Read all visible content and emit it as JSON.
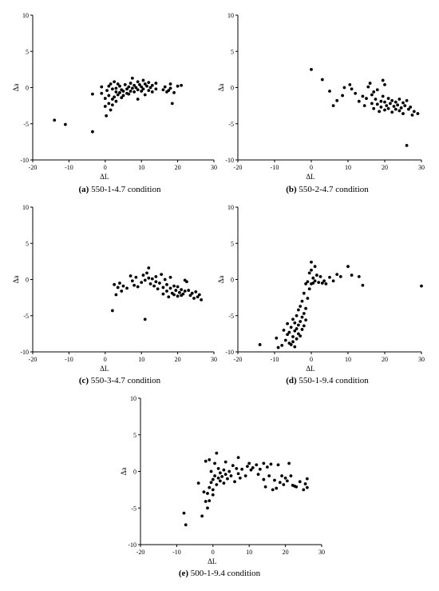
{
  "chart_data": [
    {
      "id": "a",
      "type": "scatter",
      "caption_letter": "(a)",
      "caption_text": " 550-1-4.7 condition",
      "xlabel": "ΔL",
      "ylabel": "Δa",
      "xlim": [
        -20,
        30
      ],
      "ylim": [
        -10,
        10
      ],
      "xticks": [
        "-20",
        "-10",
        "0",
        "10",
        "20",
        "30"
      ],
      "yticks": [
        "10",
        "5",
        "0",
        "-5",
        "-10"
      ],
      "points": [
        [
          -14,
          -4.5
        ],
        [
          -11,
          -5.1
        ],
        [
          -3.5,
          -6.1
        ],
        [
          -3.5,
          -0.9
        ],
        [
          -1,
          0.1
        ],
        [
          -1,
          -0.8
        ],
        [
          0,
          -1.5
        ],
        [
          0,
          -2.6
        ],
        [
          0.3,
          -3.9
        ],
        [
          0.5,
          -0.4
        ],
        [
          1,
          0.2
        ],
        [
          1,
          -1.1
        ],
        [
          1,
          -2.2
        ],
        [
          1.5,
          -3.1
        ],
        [
          1.5,
          0.5
        ],
        [
          2,
          -1.6
        ],
        [
          2,
          -0.2
        ],
        [
          2,
          -2.4
        ],
        [
          2.5,
          0.8
        ],
        [
          2.5,
          -1.3
        ],
        [
          3,
          -0.6
        ],
        [
          3,
          -1.9
        ],
        [
          3,
          -0.1
        ],
        [
          3.5,
          0.5
        ],
        [
          3.5,
          -1.0
        ],
        [
          4,
          -0.7
        ],
        [
          4,
          0.2
        ],
        [
          4.5,
          -1.4
        ],
        [
          4.5,
          -0.3
        ],
        [
          5,
          -1.1
        ],
        [
          5,
          -0.5
        ],
        [
          5.5,
          0.4
        ],
        [
          6,
          -0.8
        ],
        [
          6,
          -0.2
        ],
        [
          6.5,
          0.1
        ],
        [
          6.5,
          -0.9
        ],
        [
          7,
          0.6
        ],
        [
          7,
          -0.5
        ],
        [
          7.5,
          -0.1
        ],
        [
          7.5,
          1.3
        ],
        [
          8,
          -0.6
        ],
        [
          8,
          0.3
        ],
        [
          8.5,
          0.0
        ],
        [
          9,
          0.8
        ],
        [
          9,
          -0.3
        ],
        [
          9,
          -1.6
        ],
        [
          9.5,
          0.4
        ],
        [
          10,
          0.1
        ],
        [
          10,
          -0.5
        ],
        [
          10.5,
          1.0
        ],
        [
          10.5,
          -0.2
        ],
        [
          11,
          0.5
        ],
        [
          11,
          -1.0
        ],
        [
          11.5,
          0.2
        ],
        [
          12,
          -0.4
        ],
        [
          12,
          0.7
        ],
        [
          12.5,
          0.0
        ],
        [
          13,
          -0.6
        ],
        [
          13,
          0.3
        ],
        [
          14,
          -0.2
        ],
        [
          14,
          0.6
        ],
        [
          16,
          -0.3
        ],
        [
          16.5,
          0.1
        ],
        [
          17,
          -0.6
        ],
        [
          17.5,
          -0.4
        ],
        [
          18,
          0.5
        ],
        [
          18,
          -0.1
        ],
        [
          18.5,
          -2.2
        ],
        [
          19,
          -0.7
        ],
        [
          20,
          0.2
        ],
        [
          21,
          0.3
        ]
      ]
    },
    {
      "id": "b",
      "type": "scatter",
      "caption_letter": "(b)",
      "caption_text": " 550-2-4.7 condition",
      "xlabel": "ΔL",
      "ylabel": "Δa",
      "xlim": [
        -20,
        30
      ],
      "ylim": [
        -10,
        10
      ],
      "xticks": [
        "-20",
        "-10",
        "0",
        "10",
        "20",
        "30"
      ],
      "yticks": [
        "10",
        "5",
        "0",
        "-5",
        "-10"
      ],
      "points": [
        [
          0,
          2.5
        ],
        [
          3,
          1.1
        ],
        [
          5,
          -0.5
        ],
        [
          6,
          -2.5
        ],
        [
          7,
          -1.8
        ],
        [
          8.5,
          -1.1
        ],
        [
          9,
          0.0
        ],
        [
          10.5,
          0.4
        ],
        [
          11,
          -0.2
        ],
        [
          12,
          -0.8
        ],
        [
          13,
          -1.9
        ],
        [
          14,
          -1.2
        ],
        [
          14.5,
          -2.5
        ],
        [
          15,
          -1.5
        ],
        [
          15.5,
          0.1
        ],
        [
          16,
          0.6
        ],
        [
          16.5,
          -1.0
        ],
        [
          16.5,
          -2.2
        ],
        [
          17,
          -0.6
        ],
        [
          17,
          -2.9
        ],
        [
          17.5,
          -1.6
        ],
        [
          18,
          -2.3
        ],
        [
          18,
          -0.3
        ],
        [
          18.5,
          -3.3
        ],
        [
          19,
          -1.9
        ],
        [
          19,
          -2.7
        ],
        [
          19.5,
          1.0
        ],
        [
          19.5,
          -1.2
        ],
        [
          20,
          -2.0
        ],
        [
          20,
          -3.1
        ],
        [
          20,
          0.4
        ],
        [
          20.5,
          -2.5
        ],
        [
          21,
          -1.5
        ],
        [
          21,
          -2.9
        ],
        [
          21.5,
          -2.2
        ],
        [
          22,
          -1.8
        ],
        [
          22,
          -3.4
        ],
        [
          22.5,
          -2.6
        ],
        [
          23,
          -2.0
        ],
        [
          23,
          -3.0
        ],
        [
          23.5,
          -2.4
        ],
        [
          24,
          -1.6
        ],
        [
          24,
          -3.2
        ],
        [
          24.5,
          -2.8
        ],
        [
          25,
          -2.1
        ],
        [
          25,
          -3.6
        ],
        [
          25.5,
          -2.5
        ],
        [
          26,
          -1.8
        ],
        [
          26,
          -8.0
        ],
        [
          26.5,
          -3.0
        ],
        [
          27,
          -2.7
        ],
        [
          27.5,
          -3.8
        ],
        [
          28,
          -3.3
        ],
        [
          29,
          -3.6
        ]
      ]
    },
    {
      "id": "c",
      "type": "scatter",
      "caption_letter": "(c)",
      "caption_text": " 550-3-4.7 condition",
      "xlabel": "ΔL",
      "ylabel": "Δa",
      "xlim": [
        -20,
        30
      ],
      "ylim": [
        -10,
        10
      ],
      "xticks": [
        "-20",
        "-10",
        "0",
        "10",
        "20",
        "30"
      ],
      "yticks": [
        "10",
        "5",
        "0",
        "-5",
        "-10"
      ],
      "points": [
        [
          2,
          -4.3
        ],
        [
          2.5,
          -0.7
        ],
        [
          3,
          -2.1
        ],
        [
          3.5,
          -1.1
        ],
        [
          4,
          -0.5
        ],
        [
          4.5,
          -1.6
        ],
        [
          5,
          -0.9
        ],
        [
          6,
          -1.2
        ],
        [
          7,
          0.5
        ],
        [
          7.5,
          -0.2
        ],
        [
          8,
          -0.8
        ],
        [
          8.5,
          0.3
        ],
        [
          9,
          -1.0
        ],
        [
          10,
          -0.4
        ],
        [
          10.5,
          0.6
        ],
        [
          11,
          -5.5
        ],
        [
          11,
          -0.1
        ],
        [
          11.5,
          0.9
        ],
        [
          12,
          1.6
        ],
        [
          12,
          0.2
        ],
        [
          12.5,
          -0.6
        ],
        [
          13,
          0.1
        ],
        [
          13.5,
          -0.9
        ],
        [
          14,
          -0.3
        ],
        [
          14,
          0.4
        ],
        [
          14.5,
          -1.3
        ],
        [
          15,
          -0.5
        ],
        [
          15.5,
          0.7
        ],
        [
          16,
          -1.1
        ],
        [
          16,
          -2.0
        ],
        [
          16.5,
          0.0
        ],
        [
          17,
          -1.6
        ],
        [
          17,
          -0.7
        ],
        [
          17.5,
          -2.4
        ],
        [
          18,
          -1.2
        ],
        [
          18,
          0.3
        ],
        [
          18.5,
          -1.9
        ],
        [
          19,
          -0.9
        ],
        [
          19,
          -2.1
        ],
        [
          19.5,
          -1.5
        ],
        [
          20,
          -2.3
        ],
        [
          20,
          -1.0
        ],
        [
          20.5,
          -1.8
        ],
        [
          21,
          -2.2
        ],
        [
          21,
          -1.4
        ],
        [
          21.5,
          -2.0
        ],
        [
          22,
          -0.1
        ],
        [
          22,
          -1.6
        ],
        [
          22.5,
          -0.3
        ],
        [
          23,
          -1.5
        ],
        [
          23.5,
          -2.2
        ],
        [
          24,
          -1.9
        ],
        [
          24.5,
          -2.6
        ],
        [
          25,
          -1.7
        ],
        [
          25.5,
          -2.4
        ],
        [
          26,
          -2.1
        ],
        [
          26.5,
          -2.8
        ]
      ]
    },
    {
      "id": "d",
      "type": "scatter",
      "caption_letter": "(d)",
      "caption_text": " 550-1-9.4 condition",
      "xlabel": "ΔL",
      "ylabel": "Δa",
      "xlim": [
        -20,
        30
      ],
      "ylim": [
        -10,
        10
      ],
      "xticks": [
        "-20",
        "-10",
        "0",
        "10",
        "20",
        "30"
      ],
      "yticks": [
        "10",
        "5",
        "0",
        "-5",
        "-10"
      ],
      "points": [
        [
          -14,
          -9.0
        ],
        [
          -9.5,
          -8.1
        ],
        [
          -9,
          -9.4
        ],
        [
          -8,
          -9.1
        ],
        [
          -7.5,
          -7.0
        ],
        [
          -7,
          -8.4
        ],
        [
          -6.5,
          -6.1
        ],
        [
          -6.5,
          -7.6
        ],
        [
          -6,
          -8.8
        ],
        [
          -6,
          -7.3
        ],
        [
          -5.5,
          -9.0
        ],
        [
          -5.5,
          -6.6
        ],
        [
          -5,
          -7.9
        ],
        [
          -5,
          -5.5
        ],
        [
          -5,
          -8.6
        ],
        [
          -4.5,
          -7.1
        ],
        [
          -4.5,
          -6.0
        ],
        [
          -4.5,
          -9.3
        ],
        [
          -4,
          -6.8
        ],
        [
          -4,
          -5.0
        ],
        [
          -4,
          -8.2
        ],
        [
          -3.5,
          -7.5
        ],
        [
          -3.5,
          -6.3
        ],
        [
          -3.5,
          -4.2
        ],
        [
          -3,
          -5.8
        ],
        [
          -3,
          -3.7
        ],
        [
          -3,
          -7.8
        ],
        [
          -2.5,
          -6.9
        ],
        [
          -2.5,
          -5.2
        ],
        [
          -2.5,
          -3.0
        ],
        [
          -2,
          -4.7
        ],
        [
          -2,
          -6.4
        ],
        [
          -2,
          -1.9
        ],
        [
          -1.5,
          -4.0
        ],
        [
          -1.5,
          -0.6
        ],
        [
          -1.5,
          -5.6
        ],
        [
          -1,
          -2.6
        ],
        [
          -1,
          -0.3
        ],
        [
          -0.5,
          -1.3
        ],
        [
          -0.5,
          0.9
        ],
        [
          0,
          -0.6
        ],
        [
          0,
          2.4
        ],
        [
          0,
          1.3
        ],
        [
          0.5,
          0.2
        ],
        [
          0.5,
          -0.5
        ],
        [
          1,
          1.8
        ],
        [
          1,
          -0.2
        ],
        [
          1.5,
          0.6
        ],
        [
          2,
          -0.4
        ],
        [
          2.5,
          0.4
        ],
        [
          3,
          -0.5
        ],
        [
          3.5,
          -0.2
        ],
        [
          4,
          -0.6
        ],
        [
          5,
          0.3
        ],
        [
          6,
          -0.2
        ],
        [
          7,
          0.7
        ],
        [
          8,
          0.4
        ],
        [
          10,
          1.8
        ],
        [
          11,
          0.6
        ],
        [
          13,
          0.4
        ],
        [
          14,
          -0.8
        ],
        [
          30,
          -0.9
        ]
      ]
    },
    {
      "id": "e",
      "type": "scatter",
      "caption_letter": "(e)",
      "caption_text": " 500-1-9.4 condition",
      "xlabel": "ΔL",
      "ylabel": "Δa",
      "xlim": [
        -20,
        30
      ],
      "ylim": [
        -10,
        10
      ],
      "xticks": [
        "-20",
        "-10",
        "0",
        "10",
        "20",
        "30"
      ],
      "yticks": [
        "10",
        "5",
        "0",
        "-5",
        "-10"
      ],
      "points": [
        [
          -8,
          -5.7
        ],
        [
          -7.5,
          -7.3
        ],
        [
          -4,
          -1.6
        ],
        [
          -3,
          -6.1
        ],
        [
          -2.5,
          -2.8
        ],
        [
          -2,
          -4.1
        ],
        [
          -2,
          1.4
        ],
        [
          -1.5,
          -5.0
        ],
        [
          -1.5,
          -3.0
        ],
        [
          -1,
          -2.2
        ],
        [
          -1,
          -4.0
        ],
        [
          -1,
          1.6
        ],
        [
          -0.5,
          -1.5
        ],
        [
          -0.5,
          0.0
        ],
        [
          0,
          -3.2
        ],
        [
          0,
          -1.1
        ],
        [
          0,
          -2.5
        ],
        [
          0.5,
          -0.6
        ],
        [
          0.5,
          1.1
        ],
        [
          1,
          -1.8
        ],
        [
          1,
          2.5
        ],
        [
          1.5,
          -0.9
        ],
        [
          1.5,
          0.4
        ],
        [
          2,
          -0.2
        ],
        [
          2,
          -1.3
        ],
        [
          2.5,
          -0.7
        ],
        [
          3,
          0.2
        ],
        [
          3,
          -1.6
        ],
        [
          3.5,
          -0.4
        ],
        [
          3.5,
          1.3
        ],
        [
          4,
          -1.0
        ],
        [
          4.5,
          0.0
        ],
        [
          5,
          -0.6
        ],
        [
          5.5,
          0.8
        ],
        [
          6,
          -1.4
        ],
        [
          6.5,
          0.4
        ],
        [
          7,
          -0.3
        ],
        [
          7,
          1.9
        ],
        [
          7.5,
          -0.9
        ],
        [
          8,
          0.3
        ],
        [
          9,
          -0.6
        ],
        [
          9.5,
          0.7
        ],
        [
          10,
          1.1
        ],
        [
          10.5,
          0.2
        ],
        [
          11,
          0.5
        ],
        [
          12,
          0.9
        ],
        [
          12.5,
          -0.4
        ],
        [
          13,
          0.3
        ],
        [
          14,
          1.1
        ],
        [
          14,
          -1.1
        ],
        [
          14.5,
          -2.1
        ],
        [
          15,
          0.6
        ],
        [
          15.5,
          -0.6
        ],
        [
          16,
          1.0
        ],
        [
          16.5,
          -2.5
        ],
        [
          17,
          -1.2
        ],
        [
          17.5,
          -2.3
        ],
        [
          18,
          0.9
        ],
        [
          18.5,
          -1.5
        ],
        [
          19,
          -0.6
        ],
        [
          19.5,
          -1.8
        ],
        [
          20,
          -0.9
        ],
        [
          20.5,
          -1.3
        ],
        [
          21,
          1.1
        ],
        [
          21.5,
          -0.6
        ],
        [
          22,
          -1.9
        ],
        [
          22.5,
          -2.0
        ],
        [
          23,
          -2.1
        ],
        [
          24,
          -1.4
        ],
        [
          25,
          -2.5
        ],
        [
          25.5,
          -1.7
        ],
        [
          26,
          -2.2
        ],
        [
          26,
          -1.0
        ]
      ]
    }
  ]
}
